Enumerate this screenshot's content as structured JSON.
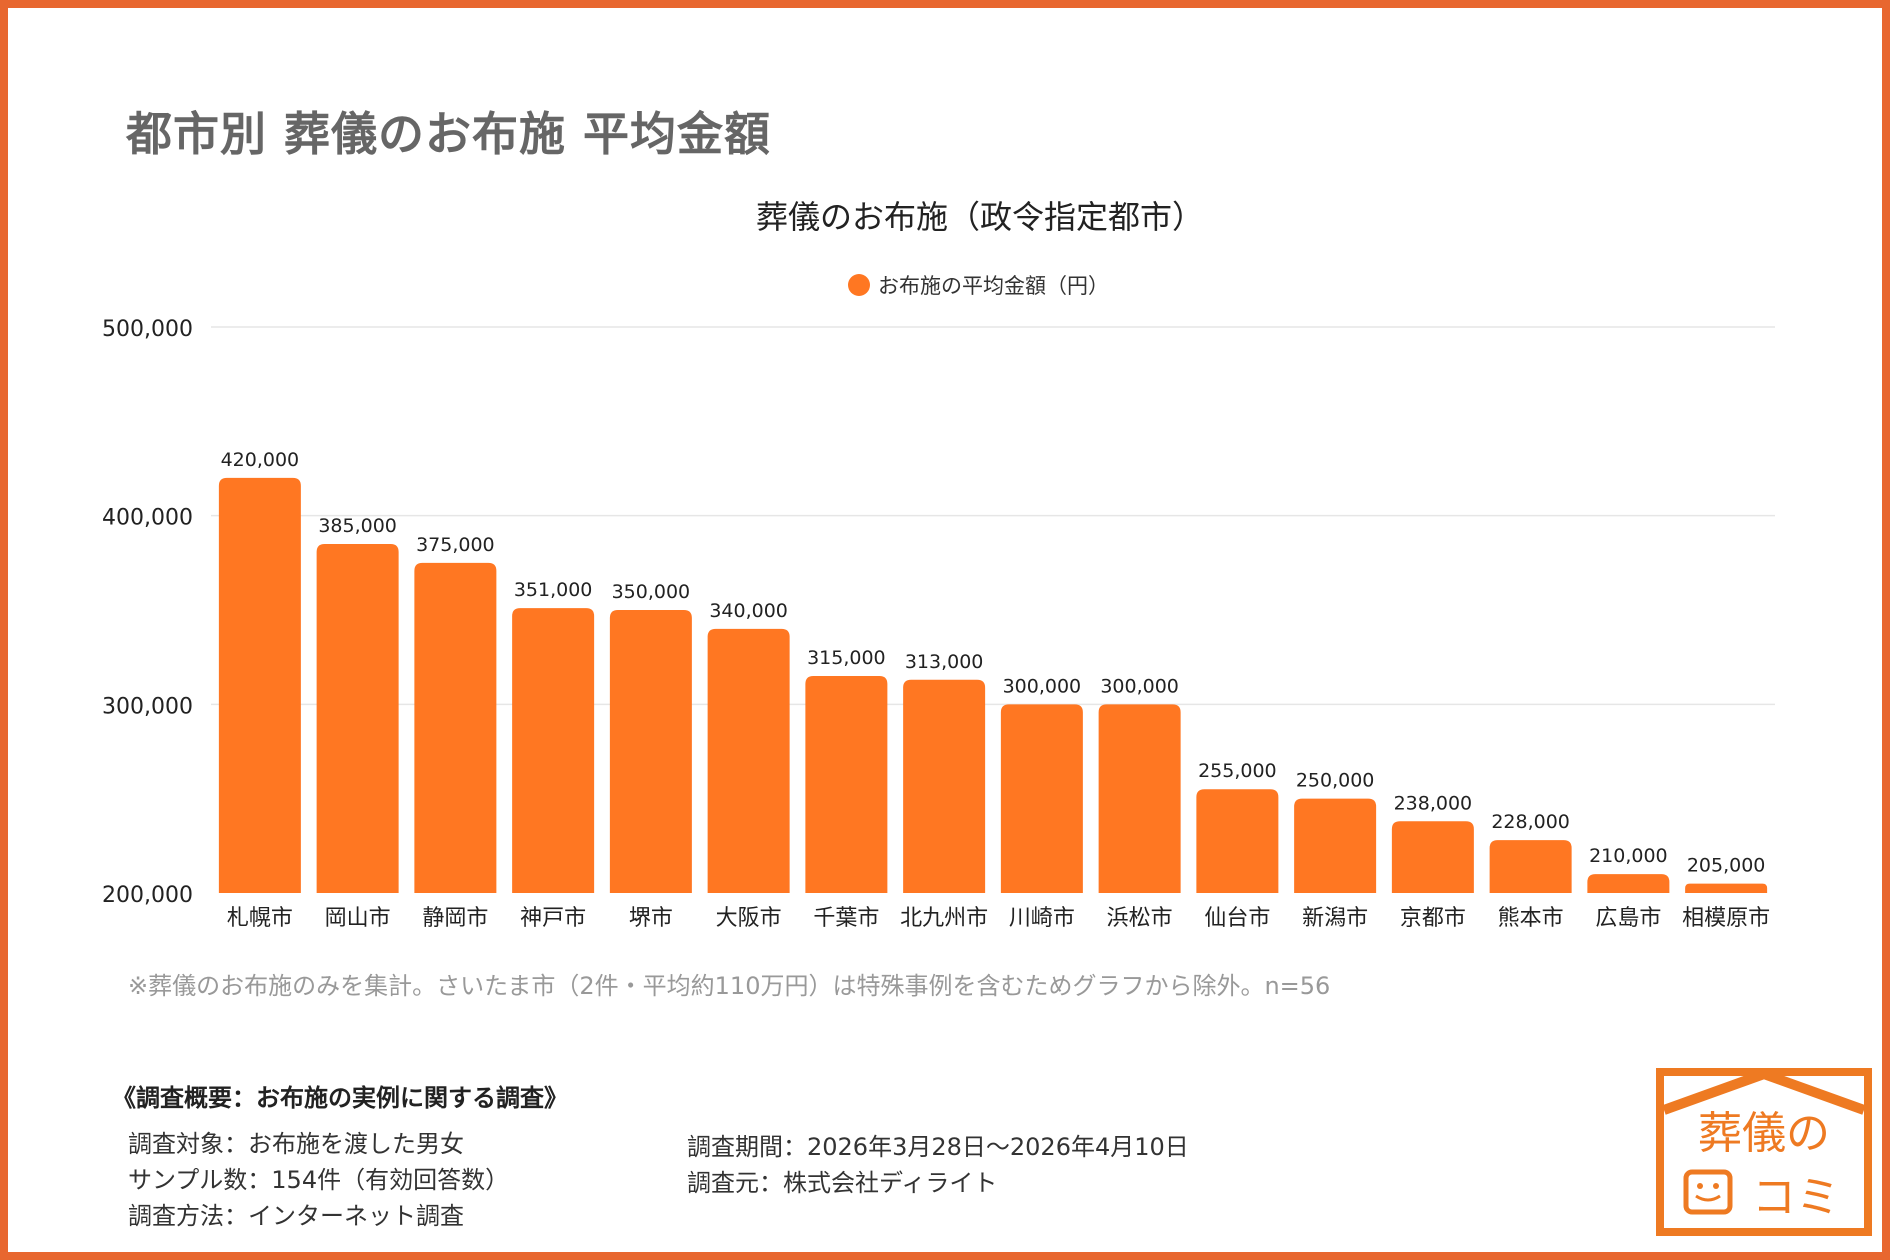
{
  "title": "都市別 葬儀のお布施 平均金額",
  "chart_data": {
    "type": "bar",
    "title": "葬儀のお布施（政令指定都市）",
    "legend": {
      "entries": [
        "お布施の平均金額（円）"
      ],
      "placement": "top"
    },
    "categories": [
      "札幌市",
      "岡山市",
      "静岡市",
      "神戸市",
      "堺市",
      "大阪市",
      "千葉市",
      "北九州市",
      "川崎市",
      "浜松市",
      "仙台市",
      "新潟市",
      "京都市",
      "熊本市",
      "広島市",
      "相模原市"
    ],
    "series": [
      {
        "name": "お布施の平均金額（円）",
        "values": [
          420000,
          385000,
          375000,
          351000,
          350000,
          340000,
          315000,
          313000,
          300000,
          300000,
          255000,
          250000,
          238000,
          228000,
          210000,
          205000
        ],
        "color": "#ff7722"
      }
    ],
    "data_labels": [
      "420,000",
      "385,000",
      "375,000",
      "351,000",
      "350,000",
      "340,000",
      "315,000",
      "313,000",
      "300,000",
      "300,000",
      "255,000",
      "250,000",
      "238,000",
      "228,000",
      "210,000",
      "205,000"
    ],
    "ylim": [
      200000,
      500000
    ],
    "yticks": [
      200000,
      300000,
      400000,
      500000
    ],
    "ytick_labels": [
      "200,000",
      "300,000",
      "400,000",
      "500,000"
    ],
    "grid": true,
    "xlabel": "",
    "ylabel": ""
  },
  "note": "※葬儀のお布施のみを集計。さいたま市（2件・平均約110万円）は特殊事例を含むためグラフから除外。n=56",
  "survey": {
    "heading": "《調査概要：お布施の実例に関する調査》",
    "left": [
      "調査対象：お布施を渡した男女",
      "サンプル数：154件（有効回答数）",
      "調査方法：インターネット調査"
    ],
    "right": [
      "調査期間：2026年3月28日〜2026年4月10日",
      "調査元：株式会社ディライト"
    ]
  },
  "logo": {
    "text_top": "葬儀の",
    "text_bottom": "コミ",
    "color": "#ee7a22"
  },
  "colors": {
    "frame": "#e8672f",
    "bar": "#ff7722"
  }
}
